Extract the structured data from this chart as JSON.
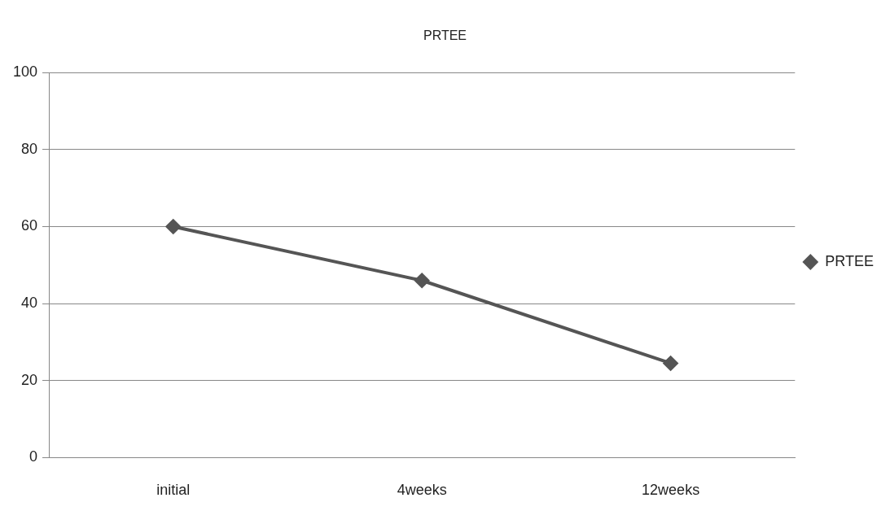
{
  "chart_data": {
    "type": "line",
    "title": "PRTEE",
    "categories": [
      "initial",
      "4weeks",
      "12weeks"
    ],
    "series": [
      {
        "name": "PRTEE",
        "color": "#555555",
        "values": [
          60,
          46,
          24.5
        ]
      }
    ],
    "ylim": [
      0,
      100
    ],
    "yticks": [
      0,
      20,
      40,
      60,
      80,
      100
    ],
    "grid": "y",
    "legend": "right",
    "marker": "diamond",
    "line_style": "solid"
  }
}
